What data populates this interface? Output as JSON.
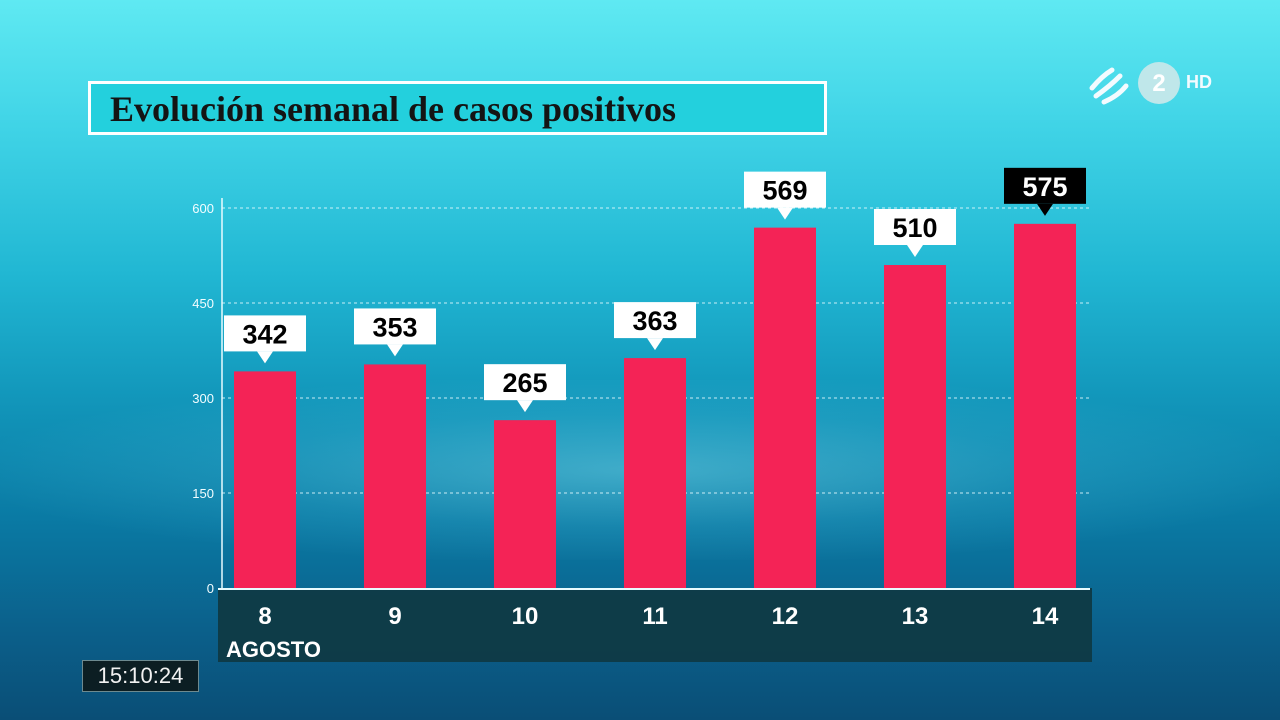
{
  "broadcaster": {
    "channel_number": "2",
    "quality_badge": "HD"
  },
  "clock": "15:10:24",
  "chart_data": {
    "type": "bar",
    "title": "Evolución semanal de casos positivos",
    "categories": [
      "8",
      "9",
      "10",
      "11",
      "12",
      "13",
      "14"
    ],
    "x_group_label": "AGOSTO",
    "values": [
      342,
      353,
      265,
      363,
      569,
      510,
      575
    ],
    "value_labels": [
      "342",
      "353",
      "265",
      "363",
      "569",
      "510",
      "575"
    ],
    "highlighted_category": "14",
    "yticks": [
      "0",
      "150",
      "300",
      "450",
      "600"
    ],
    "ylim": [
      0,
      600
    ],
    "grid": true,
    "colors": {
      "bar": "#f42356",
      "label_bg": "#ffffff",
      "label_bg_highlight": "#000000",
      "axis_band": "#0f3a45"
    }
  }
}
